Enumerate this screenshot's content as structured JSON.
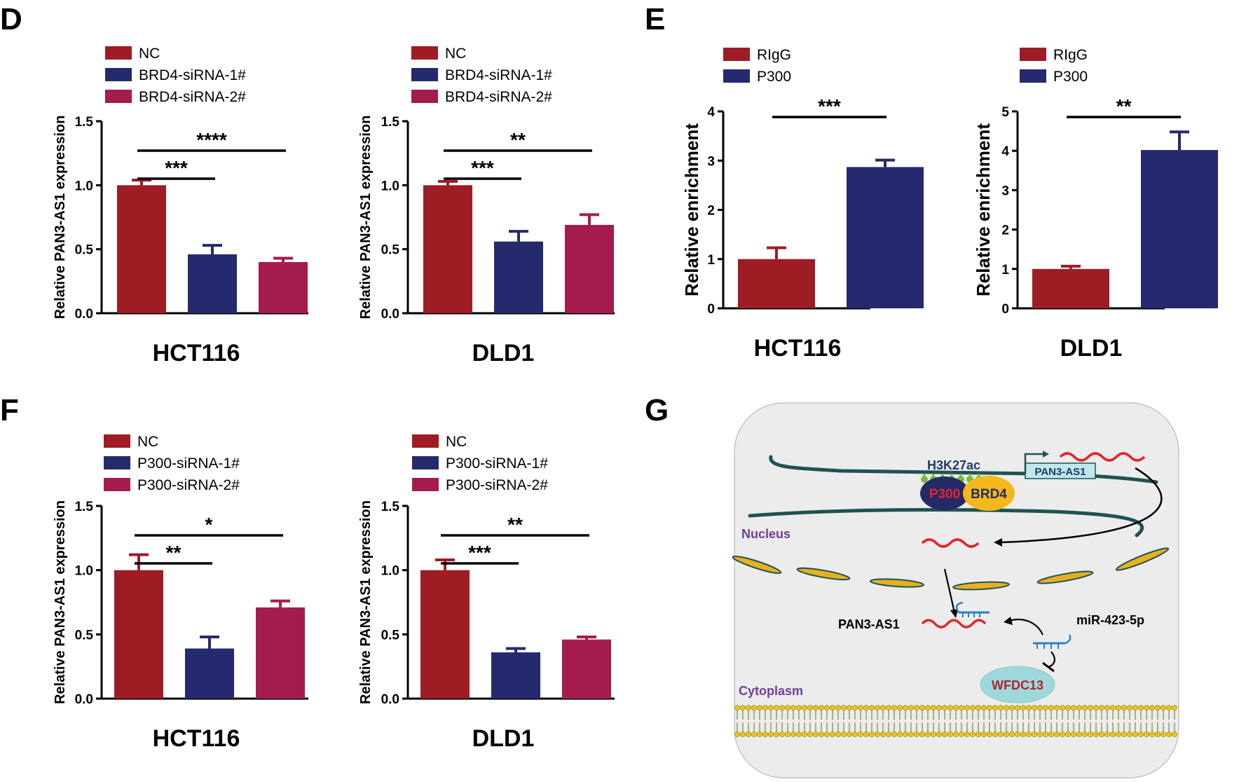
{
  "panels": [
    {
      "letter": "D"
    },
    {
      "letter": "E"
    },
    {
      "letter": "F"
    },
    {
      "letter": "G"
    }
  ],
  "colors": {
    "red": "#9e1c24",
    "navy": "#252a6e",
    "crimson": "#a41c4e",
    "axis": "#000000"
  },
  "chart_data": [
    {
      "panel": "D",
      "type": "bar",
      "categories": [
        "NC",
        "BRD4-siRNA-1#",
        "BRD4-siRNA-2#"
      ],
      "values": [
        1.0,
        0.46,
        0.4
      ],
      "errors": [
        0.04,
        0.07,
        0.03
      ],
      "colors": [
        "#9e1c24",
        "#252a6e",
        "#a41c4e"
      ],
      "ylabel": "Relative PAN3-AS1 expression",
      "xlabel": "HCT116",
      "ylim": [
        0,
        1.5
      ],
      "yticks": [
        "0.0",
        "0.5",
        "1.0",
        "1.5"
      ],
      "significance": [
        {
          "from": 0,
          "to": 1,
          "label": "***"
        },
        {
          "from": 0,
          "to": 2,
          "label": "****"
        }
      ]
    },
    {
      "panel": "D",
      "type": "bar",
      "categories": [
        "NC",
        "BRD4-siRNA-1#",
        "BRD4-siRNA-2#"
      ],
      "values": [
        1.0,
        0.56,
        0.69
      ],
      "errors": [
        0.03,
        0.08,
        0.08
      ],
      "colors": [
        "#9e1c24",
        "#252a6e",
        "#a41c4e"
      ],
      "ylabel": "Relative PAN3-AS1 expression",
      "xlabel": "DLD1",
      "ylim": [
        0,
        1.5
      ],
      "yticks": [
        "0.0",
        "0.5",
        "1.0",
        "1.5"
      ],
      "significance": [
        {
          "from": 0,
          "to": 1,
          "label": "***"
        },
        {
          "from": 0,
          "to": 2,
          "label": "**"
        }
      ]
    },
    {
      "panel": "E",
      "type": "bar",
      "categories": [
        "RIgG",
        "P300"
      ],
      "values": [
        1.0,
        2.87
      ],
      "errors": [
        0.23,
        0.14
      ],
      "colors": [
        "#9e1c24",
        "#252a6e"
      ],
      "ylabel": "Relative enrichment",
      "xlabel": "HCT116",
      "ylim": [
        0,
        4
      ],
      "yticks": [
        "0",
        "1",
        "2",
        "3",
        "4"
      ],
      "significance": [
        {
          "from": 0,
          "to": 1,
          "label": "***"
        }
      ]
    },
    {
      "panel": "E",
      "type": "bar",
      "categories": [
        "RIgG",
        "P300"
      ],
      "values": [
        1.0,
        4.02
      ],
      "errors": [
        0.07,
        0.46
      ],
      "colors": [
        "#9e1c24",
        "#252a6e"
      ],
      "ylabel": "Relative enrichment",
      "xlabel": "DLD1",
      "ylim": [
        0,
        5
      ],
      "yticks": [
        "0",
        "1",
        "2",
        "3",
        "4",
        "5"
      ],
      "significance": [
        {
          "from": 0,
          "to": 1,
          "label": "**"
        }
      ]
    },
    {
      "panel": "F",
      "type": "bar",
      "categories": [
        "NC",
        "P300-siRNA-1#",
        "P300-siRNA-2#"
      ],
      "values": [
        1.0,
        0.39,
        0.71
      ],
      "errors": [
        0.12,
        0.09,
        0.05
      ],
      "colors": [
        "#9e1c24",
        "#252a6e",
        "#a41c4e"
      ],
      "ylabel": "Relative PAN3-AS1 expression",
      "xlabel": "HCT116",
      "ylim": [
        0,
        1.5
      ],
      "yticks": [
        "0.0",
        "0.5",
        "1.0",
        "1.5"
      ],
      "significance": [
        {
          "from": 0,
          "to": 1,
          "label": "**"
        },
        {
          "from": 0,
          "to": 2,
          "label": "*"
        }
      ]
    },
    {
      "panel": "F",
      "type": "bar",
      "categories": [
        "NC",
        "P300-siRNA-1#",
        "P300-siRNA-2#"
      ],
      "values": [
        1.0,
        0.36,
        0.46
      ],
      "errors": [
        0.08,
        0.03,
        0.02
      ],
      "colors": [
        "#9e1c24",
        "#252a6e",
        "#a41c4e"
      ],
      "ylabel": "Relative PAN3-AS1 expression",
      "xlabel": "DLD1",
      "ylim": [
        0,
        1.5
      ],
      "yticks": [
        "0.0",
        "0.5",
        "1.0",
        "1.5"
      ],
      "significance": [
        {
          "from": 0,
          "to": 1,
          "label": "***"
        },
        {
          "from": 0,
          "to": 2,
          "label": "**"
        }
      ]
    }
  ],
  "diagram": {
    "h3k27ac": "H3K27ac",
    "p300": "P300",
    "brd4": "BRD4",
    "gene": "PAN3-AS1",
    "nucleus": "Nucleus",
    "pan3_as1": "PAN3-AS1",
    "mirna": "miR-423-5p",
    "wfdc13": "WFDC13",
    "cytoplasm": "Cytoplasm",
    "colors": {
      "background": "#ececec",
      "chromatin": "#1f5252",
      "p300_fill": "#232a66",
      "p300_text": "#e8222a",
      "brd4_fill": "#f5b81c",
      "brd4_text": "#232a66",
      "label_purple": "#6f3d9c",
      "rna": "#e8202a",
      "mirna": "#2a7fc8",
      "wfdc13_fill": "#9fd8dc",
      "wfdc13_text": "#b0242a",
      "h3k27ac_text": "#1f3a66",
      "envelope": "#e6b11f",
      "membrane_head": "#e8c41c",
      "membrane_tail": "#7c8a3a",
      "acetyl": "#7cb83a"
    }
  }
}
